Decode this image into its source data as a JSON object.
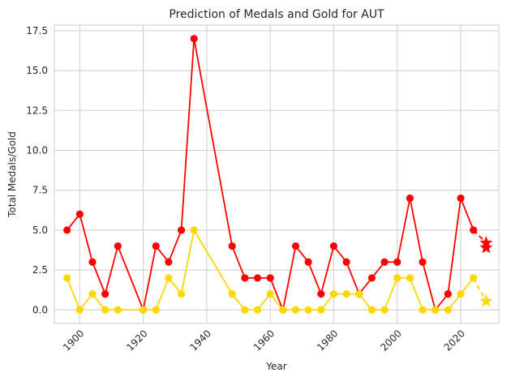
{
  "chart_data": {
    "type": "line",
    "title": "Prediction of Medals and Gold for AUT",
    "xlabel": "Year",
    "ylabel": "Total Medals/Gold",
    "xlim": [
      1892,
      2032
    ],
    "ylim": [
      -0.85,
      17.85
    ],
    "xticks": [
      1900,
      1920,
      1940,
      1960,
      1980,
      2000,
      2020
    ],
    "xtick_labels": [
      "1900",
      "1920",
      "1940",
      "1960",
      "1980",
      "2000",
      "2020"
    ],
    "yticks": [
      0,
      2.5,
      5,
      7.5,
      10,
      12.5,
      15,
      17.5
    ],
    "ytick_labels": [
      "0.0",
      "2.5",
      "5.0",
      "7.5",
      "10.0",
      "12.5",
      "15.0",
      "17.5"
    ],
    "grid": true,
    "series": [
      {
        "color": "#ff0000",
        "x": [
          1896,
          1900,
          1904,
          1908,
          1912,
          1920,
          1924,
          1928,
          1932,
          1936,
          1948,
          1952,
          1956,
          1960,
          1964,
          1968,
          1972,
          1976,
          1980,
          1984,
          1988,
          1992,
          1996,
          2000,
          2004,
          2008,
          2012,
          2016,
          2020,
          2024
        ],
        "y": [
          5,
          6,
          3,
          1,
          4,
          0,
          4,
          3,
          5,
          17,
          4,
          2,
          2,
          2,
          0,
          4,
          3,
          1,
          4,
          3,
          1,
          2,
          3,
          3,
          7,
          3,
          0,
          1,
          7,
          5
        ],
        "prediction": {
          "x": [
            2024,
            2028,
            2028
          ],
          "y": [
            5,
            4.2,
            3.9
          ]
        }
      },
      {
        "color": "#ffd700",
        "x": [
          1896,
          1900,
          1904,
          1908,
          1912,
          1920,
          1924,
          1928,
          1932,
          1936,
          1948,
          1952,
          1956,
          1960,
          1964,
          1968,
          1972,
          1976,
          1980,
          1984,
          1988,
          1992,
          1996,
          2000,
          2004,
          2008,
          2012,
          2016,
          2020,
          2024
        ],
        "y": [
          2,
          0,
          1,
          0,
          0,
          0,
          0,
          2,
          1,
          5,
          1,
          0,
          0,
          1,
          0,
          0,
          0,
          0,
          1,
          1,
          1,
          0,
          0,
          2,
          2,
          0,
          0,
          0,
          1,
          2
        ],
        "prediction": {
          "x": [
            2024,
            2028
          ],
          "y": [
            2,
            0.55
          ]
        }
      }
    ]
  }
}
